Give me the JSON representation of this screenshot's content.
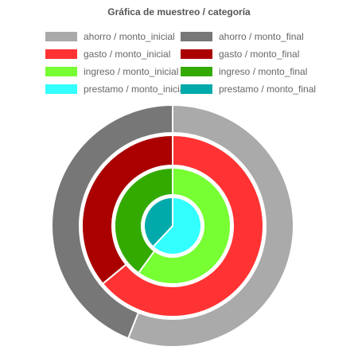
{
  "chart_data": {
    "type": "pie",
    "variant": "nested-doughnut",
    "title": "Gráfica de muestreo / categoría",
    "legend_position": "top",
    "categories": [
      "monto_inicial",
      "monto_final"
    ],
    "rings": [
      {
        "name": "ahorro",
        "series": [
          {
            "label": "ahorro / monto_inicial",
            "value": 56,
            "color": "#aaaaaa"
          },
          {
            "label": "ahorro / monto_final",
            "value": 44,
            "color": "#777777"
          }
        ]
      },
      {
        "name": "gasto",
        "series": [
          {
            "label": "gasto / monto_inicial",
            "value": 64,
            "color": "#ff3333"
          },
          {
            "label": "gasto / monto_final",
            "value": 36,
            "color": "#aa0000"
          }
        ]
      },
      {
        "name": "ingreso",
        "series": [
          {
            "label": "ingreso / monto_inicial",
            "value": 60,
            "color": "#77ff33"
          },
          {
            "label": "ingreso / monto_final",
            "value": 40,
            "color": "#33aa00"
          }
        ]
      },
      {
        "name": "prestamo",
        "series": [
          {
            "label": "prestamo / monto_inicial",
            "value": 62,
            "color": "#33ffff"
          },
          {
            "label": "prestamo / monto_final",
            "value": 38,
            "color": "#00aaaa"
          }
        ]
      }
    ]
  }
}
